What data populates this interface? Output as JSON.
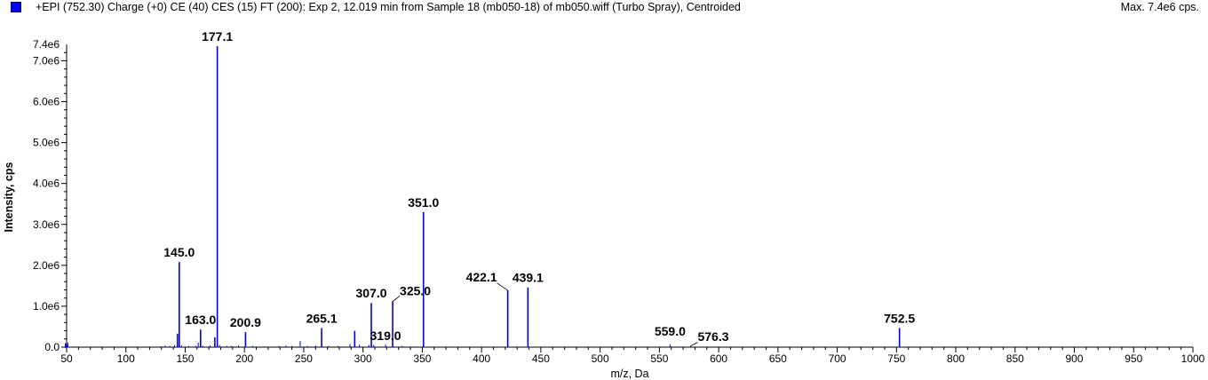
{
  "header": {
    "title": "+EPI (752.30) Charge (+0) CE (40) CES (15) FT (200): Exp 2, 12.019 min from Sample 18 (mb050-18) of mb050.wiff (Turbo Spray), Centroided",
    "max_label": "Max. 7.4e6 cps.",
    "series_color": "#0000ee"
  },
  "chart_data": {
    "type": "bar",
    "title": "+EPI (752.30) Charge (+0) CE (40) CES (15) FT (200): Exp 2, 12.019 min from Sample 18 (mb050-18) of mb050.wiff (Turbo Spray), Centroided",
    "xlabel": "m/z, Da",
    "ylabel": "Intensity, cps",
    "xlim": [
      50,
      1000
    ],
    "ylim": [
      0,
      7400000
    ],
    "x_ticks": [
      "50",
      "100",
      "150",
      "200",
      "250",
      "300",
      "350",
      "400",
      "450",
      "500",
      "550",
      "600",
      "650",
      "700",
      "750",
      "800",
      "850",
      "900",
      "950",
      "1000"
    ],
    "y_ticks": [
      "0.0",
      "1.0e6",
      "2.0e6",
      "3.0e6",
      "4.0e6",
      "5.0e6",
      "6.0e6",
      "7.0e6",
      "7.4e6"
    ],
    "grid": false,
    "color": "#0000ee",
    "peaks": [
      {
        "mz": 51,
        "i": 110000
      },
      {
        "mz": 129,
        "i": 20000
      },
      {
        "mz": 133,
        "i": 40000
      },
      {
        "mz": 137,
        "i": 30000
      },
      {
        "mz": 141,
        "i": 50000
      },
      {
        "mz": 143.5,
        "i": 330000
      },
      {
        "mz": 145.0,
        "i": 2080000,
        "label": "145.0"
      },
      {
        "mz": 147,
        "i": 40000
      },
      {
        "mz": 153,
        "i": 30000
      },
      {
        "mz": 159,
        "i": 30000
      },
      {
        "mz": 161,
        "i": 110000
      },
      {
        "mz": 163.0,
        "i": 430000,
        "label": "163.0"
      },
      {
        "mz": 165,
        "i": 30000
      },
      {
        "mz": 171,
        "i": 40000
      },
      {
        "mz": 175,
        "i": 240000
      },
      {
        "mz": 177.1,
        "i": 7360000,
        "label": "177.1"
      },
      {
        "mz": 179,
        "i": 50000
      },
      {
        "mz": 185,
        "i": 30000
      },
      {
        "mz": 189,
        "i": 30000
      },
      {
        "mz": 195,
        "i": 40000
      },
      {
        "mz": 200.9,
        "i": 370000,
        "label": "200.9"
      },
      {
        "mz": 207,
        "i": 30000
      },
      {
        "mz": 217,
        "i": 20000
      },
      {
        "mz": 229,
        "i": 30000
      },
      {
        "mz": 235,
        "i": 40000
      },
      {
        "mz": 240,
        "i": 30000
      },
      {
        "mz": 247,
        "i": 150000
      },
      {
        "mz": 253,
        "i": 30000
      },
      {
        "mz": 260,
        "i": 40000
      },
      {
        "mz": 265.1,
        "i": 470000,
        "label": "265.1"
      },
      {
        "mz": 271,
        "i": 30000
      },
      {
        "mz": 279,
        "i": 30000
      },
      {
        "mz": 289,
        "i": 80000
      },
      {
        "mz": 293,
        "i": 400000
      },
      {
        "mz": 297,
        "i": 60000
      },
      {
        "mz": 305,
        "i": 50000
      },
      {
        "mz": 307.0,
        "i": 1080000,
        "label": "307.0"
      },
      {
        "mz": 309,
        "i": 50000
      },
      {
        "mz": 319.0,
        "i": 60000,
        "label": "319.0"
      },
      {
        "mz": 325.0,
        "i": 1120000,
        "label": "325.0"
      },
      {
        "mz": 333,
        "i": 30000
      },
      {
        "mz": 351.0,
        "i": 3300000,
        "label": "351.0"
      },
      {
        "mz": 422.1,
        "i": 1390000,
        "label": "422.1"
      },
      {
        "mz": 439.1,
        "i": 1460000,
        "label": "439.1"
      },
      {
        "mz": 559.0,
        "i": 70000,
        "label": "559.0"
      },
      {
        "mz": 576.3,
        "i": 30000,
        "label": "576.3"
      },
      {
        "mz": 752.5,
        "i": 470000,
        "label": "752.5"
      }
    ]
  }
}
